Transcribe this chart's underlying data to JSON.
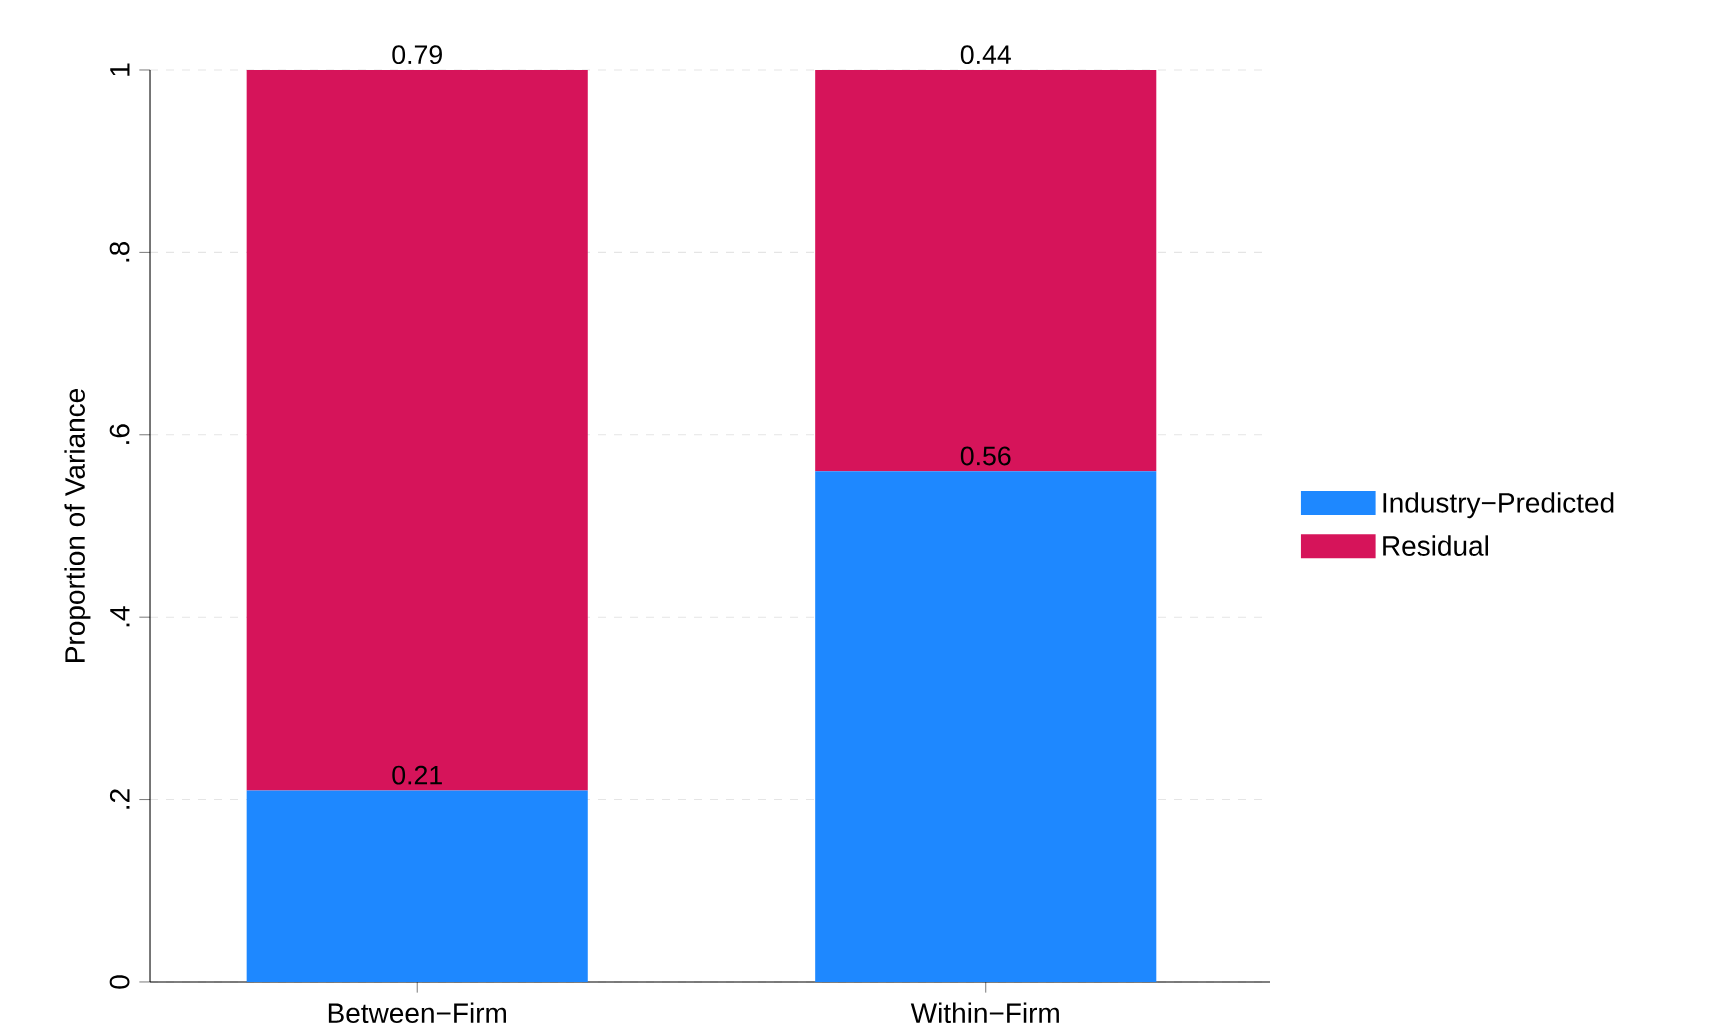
{
  "chart_data": {
    "type": "bar",
    "stacked": true,
    "ylabel": "Proportion of Variance",
    "categories": [
      "Between−Firm",
      "Within−Firm"
    ],
    "series": [
      {
        "name": "Industry−Predicted",
        "color": "#1e88ff",
        "values": [
          0.21,
          0.56
        ]
      },
      {
        "name": "Residual",
        "color": "#d6145a",
        "values": [
          0.79,
          0.44
        ]
      }
    ],
    "ylim": [
      0,
      1
    ],
    "yticks": [
      0,
      {
        "value": 0.2,
        "label": ".2"
      },
      {
        "value": 0.4,
        "label": ".4"
      },
      {
        "value": 0.6,
        "label": ".6"
      },
      {
        "value": 0.8,
        "label": ".8"
      },
      1
    ],
    "grid": "y",
    "legend": "right",
    "data_labels": true
  }
}
